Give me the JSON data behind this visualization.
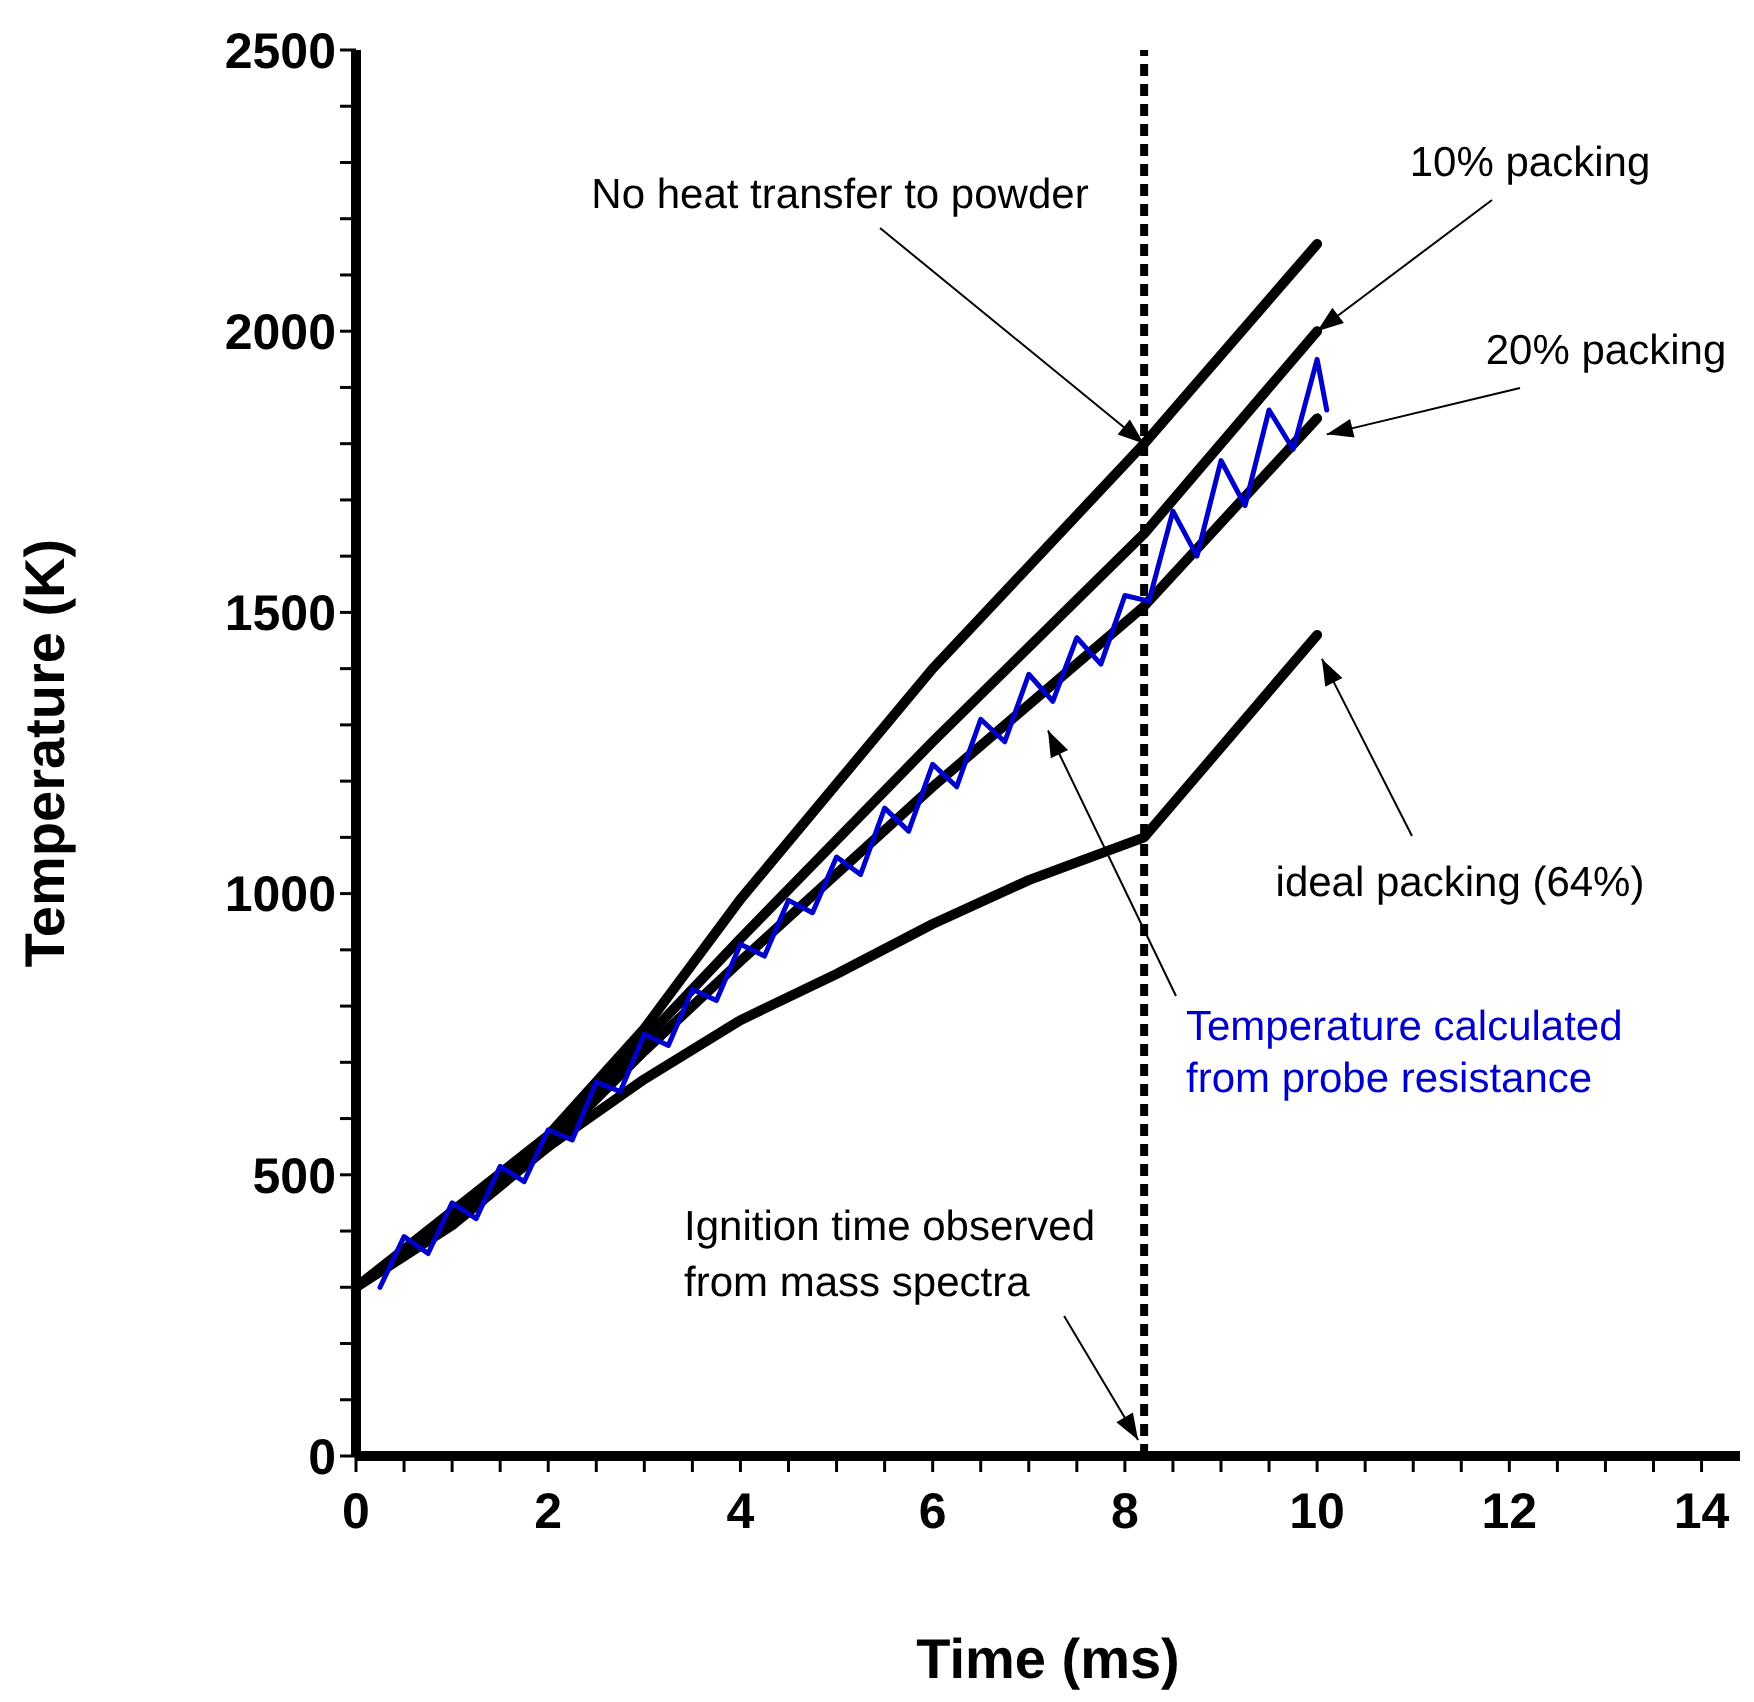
{
  "chart_data": {
    "type": "line",
    "xlabel": "Time (ms)",
    "ylabel": "Temperature (K)",
    "xlim": [
      0,
      14.4
    ],
    "ylim": [
      0,
      2500
    ],
    "xticks": [
      0,
      {
        "value": 0.5,
        "label": null
      },
      {
        "value": 1,
        "label": null
      },
      {
        "value": 1.5,
        "label": null
      },
      2,
      {
        "value": 2.5,
        "label": null
      },
      {
        "value": 3,
        "label": null
      },
      {
        "value": 3.5,
        "label": null
      },
      4,
      {
        "value": 4.5,
        "label": null
      },
      {
        "value": 5,
        "label": null
      },
      {
        "value": 5.5,
        "label": null
      },
      6,
      {
        "value": 6.5,
        "label": null
      },
      {
        "value": 7,
        "label": null
      },
      {
        "value": 7.5,
        "label": null
      },
      8,
      {
        "value": 8.5,
        "label": null
      },
      {
        "value": 9,
        "label": null
      },
      {
        "value": 9.5,
        "label": null
      },
      10,
      {
        "value": 10.5,
        "label": null
      },
      {
        "value": 11,
        "label": null
      },
      {
        "value": 11.5,
        "label": null
      },
      12,
      {
        "value": 12.5,
        "label": null
      },
      {
        "value": 13,
        "label": null
      },
      {
        "value": 13.5,
        "label": null
      },
      14
    ],
    "yticks": [
      0,
      {
        "value": 100,
        "label": null
      },
      {
        "value": 200,
        "label": null
      },
      {
        "value": 300,
        "label": null
      },
      {
        "value": 400,
        "label": null
      },
      500,
      {
        "value": 600,
        "label": null
      },
      {
        "value": 700,
        "label": null
      },
      {
        "value": 800,
        "label": null
      },
      {
        "value": 900,
        "label": null
      },
      1000,
      {
        "value": 1100,
        "label": null
      },
      {
        "value": 1200,
        "label": null
      },
      {
        "value": 1300,
        "label": null
      },
      {
        "value": 1400,
        "label": null
      },
      1500,
      {
        "value": 1600,
        "label": null
      },
      {
        "value": 1700,
        "label": null
      },
      {
        "value": 1800,
        "label": null
      },
      {
        "value": 1900,
        "label": null
      },
      2000,
      {
        "value": 2100,
        "label": null
      },
      {
        "value": 2200,
        "label": null
      },
      {
        "value": 2300,
        "label": null
      },
      {
        "value": 2400,
        "label": null
      },
      2500
    ],
    "legend": false,
    "marker": "none",
    "series": [
      {
        "name": "No heat transfer to powder",
        "color": "#000000",
        "x": [
          0,
          2,
          3,
          4,
          6,
          8.2,
          10
        ],
        "values": [
          300,
          570,
          760,
          990,
          1400,
          1800,
          2155
        ]
      },
      {
        "name": "10% packing",
        "color": "#000000",
        "x": [
          0,
          2,
          3,
          4,
          6,
          8.2,
          10
        ],
        "values": [
          300,
          560,
          740,
          920,
          1270,
          1640,
          2000
        ]
      },
      {
        "name": "20% packing",
        "color": "#000000",
        "x": [
          0,
          2,
          3,
          4,
          6,
          8.2,
          10
        ],
        "values": [
          300,
          550,
          720,
          880,
          1190,
          1511,
          1845
        ]
      },
      {
        "name": "ideal packing (64%)",
        "color": "#000000",
        "x": [
          0,
          1,
          2,
          3,
          4,
          5,
          6,
          7,
          8.2,
          10
        ],
        "values": [
          300,
          410,
          550,
          670,
          775,
          857,
          946,
          1024,
          1100,
          1460
        ]
      },
      {
        "name": "Temperature calculated from probe resistance",
        "color": "#0000cc",
        "x": [
          0.25,
          0.5,
          0.75,
          1,
          1.25,
          1.5,
          1.75,
          2,
          2.25,
          2.5,
          2.75,
          3,
          3.25,
          3.5,
          3.75,
          4,
          4.25,
          4.5,
          4.75,
          5,
          5.25,
          5.5,
          5.75,
          6,
          6.25,
          6.5,
          6.75,
          7,
          7.25,
          7.5,
          7.75,
          8,
          8.25,
          8.5,
          8.75,
          9,
          9.25,
          9.5,
          9.75,
          10,
          10.1
        ],
        "values": [
          300,
          390,
          360,
          450,
          422,
          515,
          488,
          580,
          562,
          665,
          648,
          750,
          730,
          830,
          810,
          910,
          889,
          988,
          966,
          1065,
          1034,
          1152,
          1111,
          1230,
          1190,
          1310,
          1270,
          1390,
          1342,
          1455,
          1408,
          1530,
          1520,
          1680,
          1600,
          1770,
          1690,
          1860,
          1790,
          1950,
          1860
        ]
      }
    ],
    "ref_lines": [
      {
        "axis": "x",
        "value": 8.2,
        "label": "Ignition time observed from mass spectra",
        "color": "#000000",
        "line_style": "dashed"
      }
    ]
  }
}
